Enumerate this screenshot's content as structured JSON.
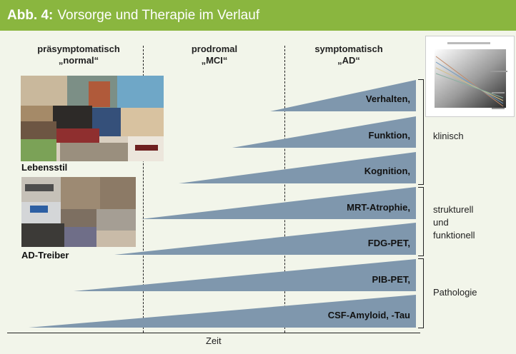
{
  "header": {
    "figure_number": "Abb. 4:",
    "title": "Vorsorge und Therapie im Verlauf"
  },
  "phases": [
    {
      "line1": "präsymptomatisch",
      "line2": "„normal“"
    },
    {
      "line1": "prodromal",
      "line2": "„MCI“"
    },
    {
      "line1": "symptomatisch",
      "line2": "„AD“"
    }
  ],
  "markers": [
    {
      "label": "Verhalten,"
    },
    {
      "label": "Funktion,"
    },
    {
      "label": "Kognition,"
    },
    {
      "label": "MRT-Atrophie,"
    },
    {
      "label": "FDG-PET,"
    },
    {
      "label": "PIB-PET,"
    },
    {
      "label": "CSF-Amyloid, -Tau"
    }
  ],
  "categories": {
    "klinisch": "klinisch",
    "strukturell_1": "strukturell",
    "strukturell_2": "und",
    "strukturell_3": "funktionell",
    "pathologie": "Pathologie"
  },
  "images": {
    "lifestyle_caption": "Lebensstil",
    "drivers_caption": "AD-Treiber"
  },
  "axis": {
    "x_label": "Zeit"
  },
  "colors": {
    "header_bg": "#8ab63f",
    "wedge_fill": "#7f97ad",
    "panel_bg": "#f2f5ea"
  }
}
